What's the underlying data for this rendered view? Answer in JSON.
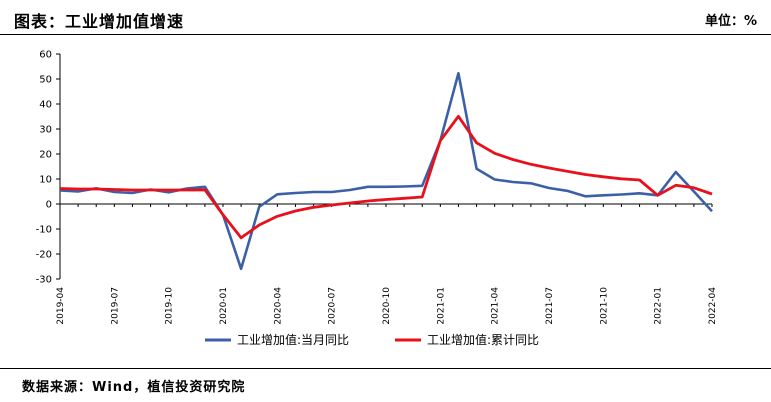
{
  "header": {
    "title": "图表：工业增加值增速",
    "unit": "单位：%"
  },
  "footer": {
    "source": "数据来源：Wind，植信投资研究院"
  },
  "chart_data": {
    "type": "line",
    "ylim": [
      -30,
      60
    ],
    "yticks": [
      -30,
      -20,
      -10,
      0,
      10,
      20,
      30,
      40,
      50,
      60
    ],
    "grid": false,
    "legend_position": "bottom",
    "x": [
      "2019-04",
      "2019-05",
      "2019-06",
      "2019-07",
      "2019-08",
      "2019-09",
      "2019-10",
      "2019-11",
      "2019-12",
      "2020-01",
      "2020-02",
      "2020-03",
      "2020-04",
      "2020-05",
      "2020-06",
      "2020-07",
      "2020-08",
      "2020-09",
      "2020-10",
      "2020-11",
      "2020-12",
      "2021-01",
      "2021-02",
      "2021-03",
      "2021-04",
      "2021-05",
      "2021-06",
      "2021-07",
      "2021-08",
      "2021-09",
      "2021-10",
      "2021-11",
      "2021-12",
      "2022-01",
      "2022-02",
      "2022-03",
      "2022-04"
    ],
    "xtick_labels": [
      "2019-04",
      "2019-07",
      "2019-10",
      "2020-01",
      "2020-04",
      "2020-07",
      "2020-10",
      "2021-01",
      "2021-04",
      "2021-07",
      "2021-10",
      "2022-01",
      "2022-04"
    ],
    "series": [
      {
        "name": "工业增加值:当月同比",
        "color": "#3c60a8",
        "values": [
          5.4,
          5.0,
          6.3,
          4.8,
          4.4,
          5.8,
          4.7,
          6.2,
          6.9,
          -4.3,
          -25.9,
          -1.1,
          3.9,
          4.4,
          4.8,
          4.8,
          5.6,
          6.9,
          6.9,
          7.0,
          7.3,
          25.3,
          52.3,
          14.1,
          9.8,
          8.8,
          8.3,
          6.4,
          5.3,
          3.1,
          3.5,
          3.8,
          4.3,
          3.5,
          12.8,
          5.0,
          -2.9
        ]
      },
      {
        "name": "工业增加值:累计同比",
        "color": "#e8101a",
        "values": [
          6.2,
          6.0,
          6.0,
          5.8,
          5.6,
          5.6,
          5.6,
          5.6,
          5.7,
          -4.3,
          -13.5,
          -8.4,
          -4.9,
          -2.8,
          -1.3,
          -0.4,
          0.4,
          1.2,
          1.8,
          2.3,
          2.8,
          25.3,
          35.1,
          24.5,
          20.3,
          17.8,
          15.9,
          14.4,
          13.1,
          11.8,
          10.9,
          10.1,
          9.6,
          3.5,
          7.5,
          6.5,
          4.0
        ]
      }
    ]
  }
}
